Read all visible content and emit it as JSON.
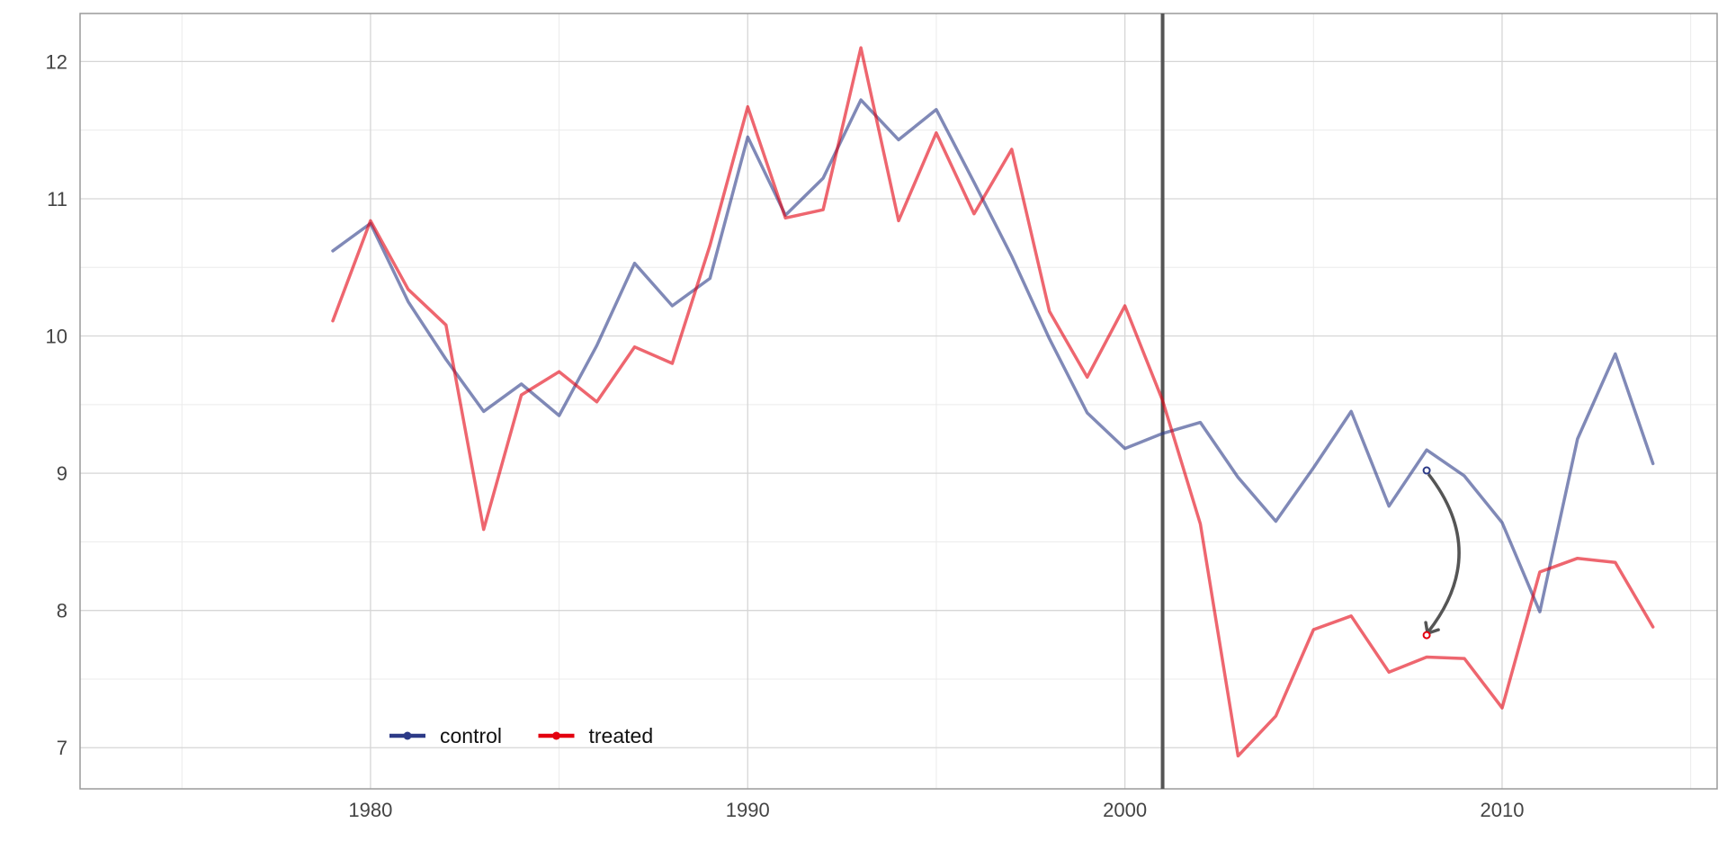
{
  "chart_data": {
    "type": "line",
    "title": "",
    "xlabel": "",
    "ylabel": "",
    "xlim": [
      1972.3,
      2015.7
    ],
    "ylim": [
      6.7,
      12.35
    ],
    "x_ticks": [
      1980,
      1990,
      2000,
      2010
    ],
    "y_ticks": [
      7,
      8,
      9,
      10,
      11,
      12
    ],
    "grid": true,
    "legend_position": "bottom-left",
    "treatment_year": 2001,
    "series": [
      {
        "name": "control",
        "color": "#2c3a87",
        "x": [
          1979,
          1980,
          1981,
          1982,
          1983,
          1984,
          1985,
          1986,
          1987,
          1988,
          1989,
          1990,
          1991,
          1992,
          1993,
          1994,
          1995,
          1996,
          1997,
          1998,
          1999,
          2000,
          2001,
          2002,
          2003,
          2004,
          2005,
          2006,
          2007,
          2008,
          2009,
          2010,
          2011,
          2012,
          2013,
          2014
        ],
        "values": [
          10.62,
          10.82,
          10.25,
          9.83,
          9.45,
          9.65,
          9.42,
          9.93,
          10.53,
          10.22,
          10.42,
          11.45,
          10.88,
          11.15,
          11.72,
          11.43,
          11.65,
          11.12,
          10.58,
          9.98,
          9.44,
          9.18,
          9.29,
          9.37,
          8.97,
          8.65,
          9.04,
          9.45,
          8.76,
          9.17,
          8.98,
          8.64,
          7.99,
          9.25,
          9.87,
          9.07
        ]
      },
      {
        "name": "treated",
        "color": "#e3000f",
        "x": [
          1979,
          1980,
          1981,
          1982,
          1983,
          1984,
          1985,
          1986,
          1987,
          1988,
          1989,
          1990,
          1991,
          1992,
          1993,
          1994,
          1995,
          1996,
          1997,
          1998,
          1999,
          2000,
          2001,
          2002,
          2003,
          2004,
          2005,
          2006,
          2007,
          2008,
          2009,
          2010,
          2011,
          2012,
          2013,
          2014
        ],
        "values": [
          10.11,
          10.84,
          10.34,
          10.08,
          8.59,
          9.57,
          9.74,
          9.52,
          9.92,
          9.8,
          10.66,
          11.67,
          10.86,
          10.92,
          12.1,
          10.84,
          11.48,
          10.89,
          11.36,
          10.18,
          9.7,
          10.22,
          9.53,
          8.63,
          6.94,
          7.23,
          7.86,
          7.96,
          7.55,
          7.66,
          7.65,
          7.29,
          8.28,
          8.38,
          8.35,
          7.88
        ]
      }
    ],
    "annotation": {
      "type": "arrow",
      "from": {
        "x": 2008,
        "y": 9.02
      },
      "to": {
        "x": 2008,
        "y": 7.82
      }
    }
  }
}
